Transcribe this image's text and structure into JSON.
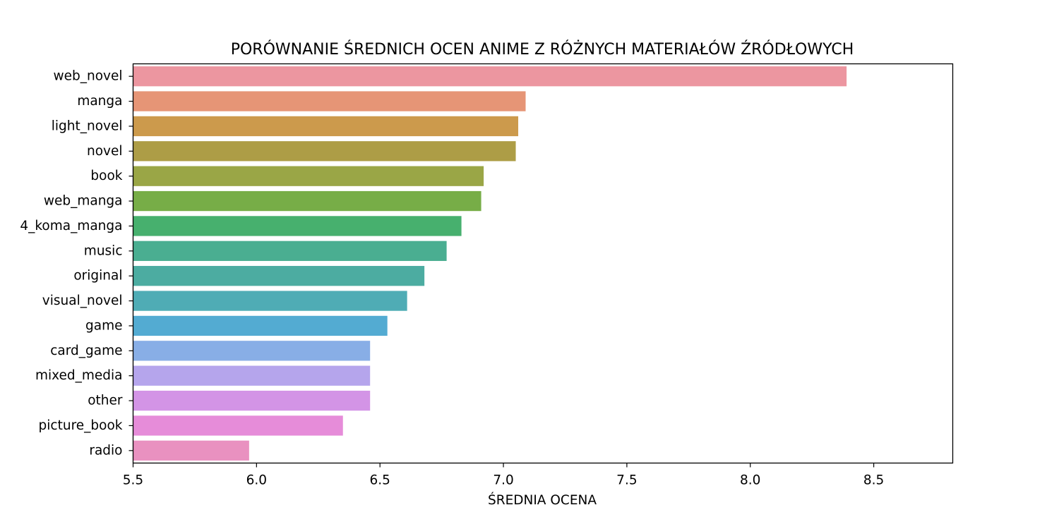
{
  "chart_data": {
    "type": "bar",
    "orientation": "horizontal",
    "title": "PORÓWNANIE ŚREDNICH OCEN ANIME Z RÓŻNYCH MATERIAŁÓW ŹRÓDŁOWYCH",
    "xlabel": "ŚREDNIA OCENA",
    "ylabel": "",
    "xlim": [
      5.5,
      8.82
    ],
    "x_ticks": [
      "5.5",
      "6.0",
      "6.5",
      "7.0",
      "7.5",
      "8.0",
      "8.5"
    ],
    "grid": false,
    "categories": [
      "web_novel",
      "manga",
      "light_novel",
      "novel",
      "book",
      "web_manga",
      "4_koma_manga",
      "music",
      "original",
      "visual_novel",
      "game",
      "card_game",
      "mixed_media",
      "other",
      "picture_book",
      "radio"
    ],
    "values": [
      8.39,
      7.09,
      7.06,
      7.05,
      6.92,
      6.91,
      6.83,
      6.77,
      6.68,
      6.61,
      6.53,
      6.46,
      6.46,
      6.46,
      6.35,
      5.97
    ],
    "colors": [
      "#ec96a0",
      "#e69576",
      "#cc9a4c",
      "#ad9d46",
      "#9aa646",
      "#77ad47",
      "#47b06e",
      "#4aae91",
      "#4caca1",
      "#4facb5",
      "#53abd2",
      "#88aee6",
      "#b5a5ec",
      "#d394e6",
      "#e68cd9",
      "#e991c0"
    ]
  }
}
